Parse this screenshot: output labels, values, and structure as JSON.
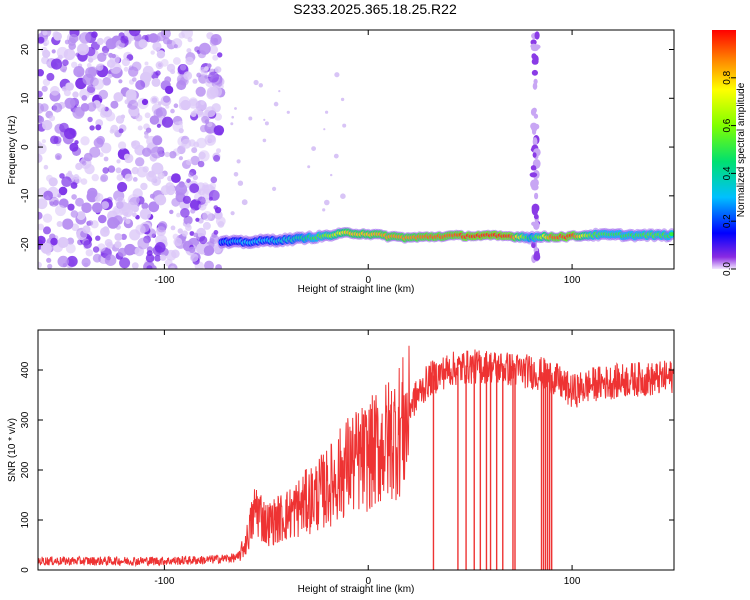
{
  "title": "S233.2025.365.18.25.R22",
  "chart_data": [
    {
      "type": "heatmap",
      "xlabel": "Height of straight line (km)",
      "ylabel": "Frequency (Hz)",
      "xlim": [
        -162,
        150
      ],
      "ylim": [
        -25,
        24
      ],
      "xticks": [
        -100,
        0,
        100
      ],
      "yticks": [
        -20,
        -10,
        0,
        10,
        20
      ],
      "colorbar": {
        "label": "Normalized spectral amplitude",
        "range": [
          0,
          1
        ],
        "ticks": [
          0.0,
          0.2,
          0.4,
          0.6,
          0.8
        ]
      },
      "features": {
        "noise_region_x": [
          -162,
          -72
        ],
        "signal_track": {
          "x": [
            -72,
            -60,
            -50,
            -40,
            -30,
            -20,
            -10,
            0,
            10,
            20,
            30,
            40,
            50,
            60,
            70,
            80,
            90,
            100,
            110,
            120,
            130,
            140,
            150
          ],
          "frequency": [
            -19.5,
            -19.5,
            -19.2,
            -19.0,
            -18.6,
            -18.2,
            -17.6,
            -17.8,
            -18.3,
            -18.6,
            -18.4,
            -18.2,
            -18.2,
            -18.2,
            -18.3,
            -18.5,
            -18.4,
            -18.3,
            -18.0,
            -18.0,
            -18.1,
            -18.1,
            -18.1
          ],
          "amplitude": [
            0.25,
            0.3,
            0.3,
            0.35,
            0.45,
            0.6,
            0.8,
            0.8,
            0.85,
            0.85,
            0.9,
            0.9,
            0.95,
            0.95,
            0.95,
            0.4,
            0.9,
            0.95,
            0.55,
            0.5,
            0.5,
            0.55,
            0.5
          ]
        },
        "vertical_stripe_x": 82
      }
    },
    {
      "type": "line",
      "xlabel": "Height of straight line (km)",
      "ylabel": "SNR (10 * v/v)",
      "xlim": [
        -162,
        150
      ],
      "ylim": [
        0,
        480
      ],
      "xticks": [
        -100,
        0,
        100
      ],
      "yticks": [
        0,
        100,
        200,
        300,
        400
      ],
      "color": "#ee3333",
      "series_envelope": {
        "x": [
          -162,
          -140,
          -120,
          -100,
          -80,
          -64,
          -60,
          -55,
          -50,
          -40,
          -30,
          -20,
          -10,
          0,
          10,
          20,
          30,
          40,
          50,
          60,
          70,
          80,
          90,
          100,
          110,
          120,
          130,
          140,
          150
        ],
        "y": [
          18,
          18,
          18,
          18,
          20,
          25,
          60,
          140,
          100,
          120,
          150,
          180,
          230,
          250,
          285,
          330,
          385,
          405,
          410,
          410,
          405,
          400,
          390,
          360,
          375,
          380,
          385,
          385,
          390
        ]
      },
      "dropouts_x": [
        32,
        44,
        48,
        52,
        55,
        58,
        60,
        63,
        66,
        71,
        72,
        85,
        86,
        87,
        88,
        89,
        90
      ]
    }
  ]
}
